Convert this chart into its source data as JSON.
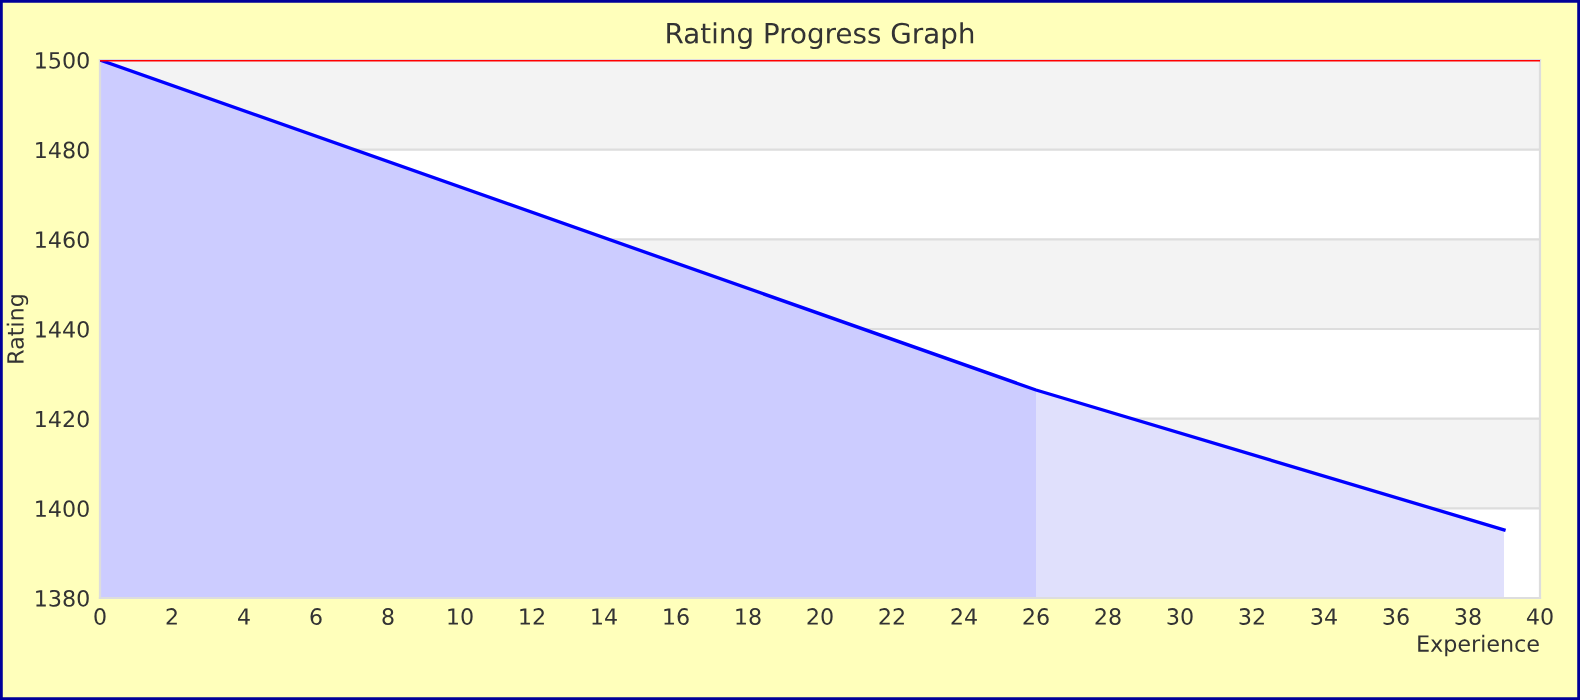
{
  "chart_data": {
    "type": "area",
    "title": "Rating Progress Graph",
    "xlabel": "Experience",
    "ylabel": "Rating",
    "series": [
      {
        "color": "#ccccff",
        "x": [
          0,
          26
        ],
        "values": [
          1500,
          1426.4
        ]
      },
      {
        "color": "#e0e0fc",
        "x": [
          26,
          39
        ],
        "values": [
          1426.4,
          1395.2
        ]
      },
      {
        "type": "line",
        "color": "#0000ff",
        "x": [
          0,
          26,
          39
        ],
        "values": [
          1500,
          1426.4,
          1395.2
        ]
      }
    ],
    "xlim": [
      0,
      40
    ],
    "xticks": [
      0,
      2,
      4,
      6,
      8,
      10,
      12,
      14,
      16,
      18,
      20,
      22,
      24,
      26,
      28,
      30,
      32,
      34,
      36,
      38,
      40
    ],
    "ylim": [
      1380,
      1500
    ],
    "yticks": [
      1380,
      1400,
      1420,
      1440,
      1460,
      1480,
      1500
    ],
    "ref_lines": [
      {
        "axis": "y",
        "value": 1500,
        "color": "#ff0000"
      }
    ],
    "grid": "y"
  }
}
